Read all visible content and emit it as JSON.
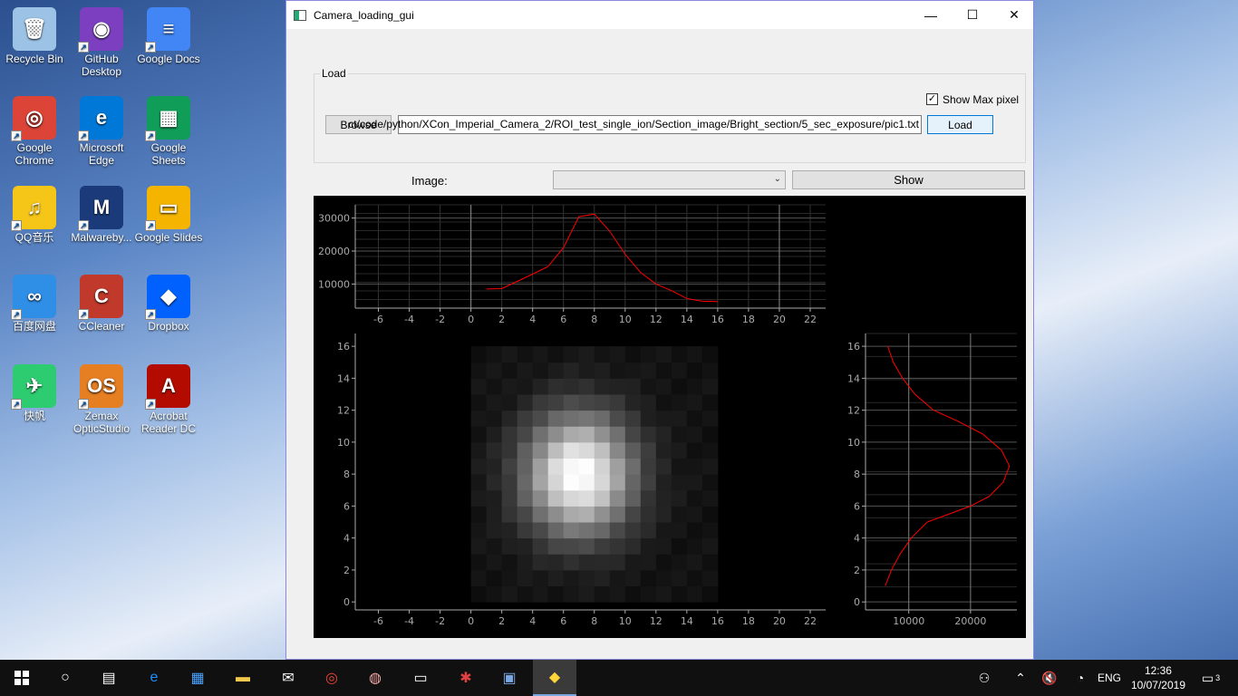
{
  "desktop_icons": [
    {
      "label": "Recycle Bin",
      "color": "#9cc3e6",
      "glyph": "🗑"
    },
    {
      "label": "GitHub Desktop",
      "color": "#7b3fbf",
      "glyph": "◉"
    },
    {
      "label": "Google Docs",
      "color": "#4285f4",
      "glyph": "≡"
    },
    {
      "label": "Google Chrome",
      "color": "#db4437",
      "glyph": "◎"
    },
    {
      "label": "Microsoft Edge",
      "color": "#0078d7",
      "glyph": "e"
    },
    {
      "label": "Google Sheets",
      "color": "#0f9d58",
      "glyph": "▦"
    },
    {
      "label": "QQ音乐",
      "color": "#f5c518",
      "glyph": "♫"
    },
    {
      "label": "Malwareby...",
      "color": "#1a3a7a",
      "glyph": "M"
    },
    {
      "label": "Google Slides",
      "color": "#f4b400",
      "glyph": "▭"
    },
    {
      "label": "百度网盘",
      "color": "#2f8ee6",
      "glyph": "∞"
    },
    {
      "label": "CCleaner",
      "color": "#c0392b",
      "glyph": "C"
    },
    {
      "label": "Dropbox",
      "color": "#0061fe",
      "glyph": "◆"
    },
    {
      "label": "快帆",
      "color": "#2ecc71",
      "glyph": "✈"
    },
    {
      "label": "Zemax OpticStudio",
      "color": "#e67e22",
      "glyph": "OS"
    },
    {
      "label": "Acrobat Reader DC",
      "color": "#b30b00",
      "glyph": "A"
    }
  ],
  "window": {
    "title": "Camera_loading_gui",
    "minimize": "—",
    "maximize": "☐",
    "close": "✕"
  },
  "load_group": {
    "title": "Load",
    "browse_label": "Browse",
    "path_value": "ct/code/python/XCon_Imperial_Camera_2/ROI_test_single_ion/Section_image/Bright_section/5_sec_exposure/pic1.txt",
    "load_label": "Load",
    "show_max_pixel_label": "Show Max pixel",
    "show_max_pixel_checked": "✓"
  },
  "image_row": {
    "label": "Image:",
    "selected": "",
    "show_label": "Show"
  },
  "chart_data": [
    {
      "type": "line",
      "name": "top-profile",
      "x": [
        1,
        2,
        3,
        4,
        5,
        6,
        7,
        8,
        9,
        10,
        11,
        12,
        13,
        14,
        15,
        16
      ],
      "y": [
        8500,
        8600,
        10800,
        13000,
        15300,
        21000,
        30400,
        31200,
        26000,
        19000,
        13500,
        10000,
        8000,
        5600,
        4800,
        4700
      ],
      "xlim": [
        -7.5,
        23
      ],
      "ylim": [
        2700,
        34000
      ],
      "xticks": [
        -6,
        -4,
        -2,
        0,
        2,
        4,
        6,
        8,
        10,
        12,
        14,
        16,
        18,
        20,
        22
      ],
      "yticks": [
        10000,
        20000,
        30000
      ],
      "color": "#ff0000"
    },
    {
      "type": "heatmap",
      "name": "image",
      "xlim": [
        -7.5,
        23
      ],
      "ylim": [
        -0.5,
        16.8
      ],
      "xticks": [
        -6,
        -4,
        -2,
        0,
        2,
        4,
        6,
        8,
        10,
        12,
        14,
        16,
        18,
        20,
        22
      ],
      "yticks": [
        0,
        2,
        4,
        6,
        8,
        10,
        12,
        14,
        16
      ],
      "center": [
        7,
        8
      ],
      "grid_size": [
        16,
        16
      ]
    },
    {
      "type": "line",
      "name": "side-profile",
      "x": [
        6200,
        7200,
        8600,
        10400,
        13000,
        16500,
        20000,
        23000,
        25300,
        26300,
        25000,
        22000,
        18000,
        14000,
        11000,
        9000,
        7500,
        6600
      ],
      "y": [
        1,
        2,
        3,
        4,
        5,
        5.5,
        6,
        6.6,
        7.5,
        8.5,
        9.5,
        10.5,
        11.3,
        12,
        13,
        14,
        15,
        16
      ],
      "xlim": [
        3000,
        27500
      ],
      "ylim": [
        -0.5,
        16.8
      ],
      "xticks": [
        10000,
        20000
      ],
      "yticks": [
        0,
        2,
        4,
        6,
        8,
        10,
        12,
        14,
        16
      ],
      "color": "#ff0000"
    }
  ],
  "taskbar": {
    "language": "ENG",
    "time": "12:36",
    "date": "10/07/2019",
    "notifications": "3"
  }
}
